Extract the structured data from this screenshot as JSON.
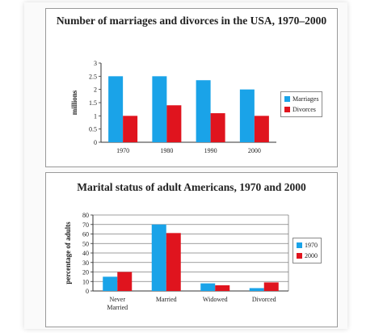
{
  "colors": {
    "blue": "#1aa3e8",
    "red": "#e0141e",
    "grid": "#7f7f7f"
  },
  "chart_data": [
    {
      "type": "bar",
      "title": "Number of marriages and divorces in the USA, 1970–2000",
      "ylabel": "millions",
      "xlabel": "",
      "ylim": [
        0,
        3
      ],
      "yticks": [
        "0",
        "0.5",
        "1",
        "1.5",
        "2",
        "2.5",
        "3"
      ],
      "grid": false,
      "legend": "right",
      "categories": [
        "1970",
        "1980",
        "1990",
        "2000"
      ],
      "series": [
        {
          "name": "Marriages",
          "color": "#1aa3e8",
          "values": [
            2.5,
            2.5,
            2.35,
            2.0
          ]
        },
        {
          "name": "Divorces",
          "color": "#e0141e",
          "values": [
            1.0,
            1.4,
            1.1,
            1.0
          ]
        }
      ]
    },
    {
      "type": "bar",
      "title": "Marital status of adult Americans, 1970 and 2000",
      "ylabel": "percentage of adults",
      "xlabel": "",
      "ylim": [
        0,
        80
      ],
      "yticks": [
        "0",
        "10",
        "20",
        "30",
        "40",
        "50",
        "60",
        "70",
        "80"
      ],
      "grid": true,
      "legend": "right",
      "categories": [
        "Never Married",
        "Married",
        "Widowed",
        "Divorced"
      ],
      "category_lines": [
        [
          "Never",
          "Married"
        ],
        [
          "Married"
        ],
        [
          "Widowed"
        ],
        [
          "Divorced"
        ]
      ],
      "series": [
        {
          "name": "1970",
          "color": "#1aa3e8",
          "values": [
            15,
            70,
            8,
            3
          ]
        },
        {
          "name": "2000",
          "color": "#e0141e",
          "values": [
            20,
            61,
            6,
            9
          ]
        }
      ]
    }
  ]
}
